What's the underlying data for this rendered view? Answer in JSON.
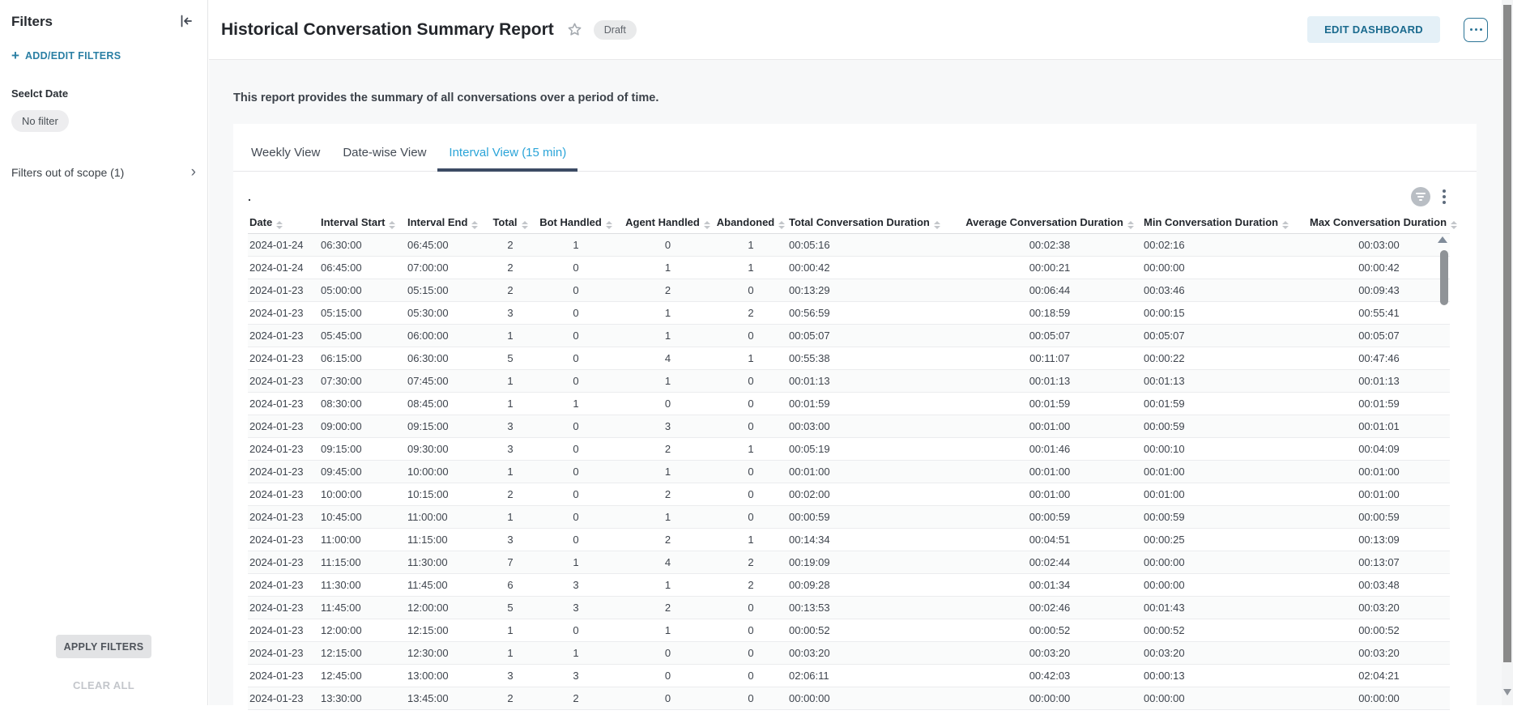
{
  "sidebar": {
    "title": "Filters",
    "add_edit_filters": "ADD/EDIT FILTERS",
    "select_date_label": "Seelct Date",
    "no_filter_chip": "No filter",
    "filters_out_of_scope": "Filters out of scope (1)",
    "apply_filters_button": "APPLY FILTERS",
    "clear_all_button": "CLEAR ALL"
  },
  "header": {
    "title": "Historical Conversation Summary Report",
    "status_badge": "Draft",
    "edit_dashboard_button": "EDIT DASHBOARD"
  },
  "report": {
    "description": "This report provides the summary of all conversations over a period of time.",
    "tabs": [
      "Weekly View",
      "Date-wise View",
      "Interval View (15 min)"
    ],
    "active_tab": "Interval View (15 min)",
    "widget_title": "."
  },
  "icons": {
    "collapse_sidebar": "collapse-left-icon",
    "add_filter": "plus-icon",
    "scope_expand": "chevron-right-icon",
    "favorite": "star-icon",
    "more_actions": "ellipsis-icon",
    "widget_filter": "filter-icon",
    "widget_menu": "kebab-menu-icon",
    "column_sort": "sort-arrows-icon"
  },
  "colors": {
    "link_teal": "#2a7fa4",
    "active_tab_blue": "#2aa4d8",
    "tab_underline": "#3c4b64",
    "edit_button_bg": "#e4f0f7",
    "edit_button_text": "#1a6a8e",
    "badge_bg": "#e9eaeb",
    "content_bg": "#f7f8f9"
  },
  "table": {
    "columns": [
      "Date",
      "Interval Start",
      "Interval End",
      "Total",
      "Bot Handled",
      "Agent Handled",
      "Abandoned",
      "Total Conversation Duration",
      "Average Conversation Duration",
      "Min Conversation Duration",
      "Max Conversation Duration"
    ],
    "rows": [
      [
        "2024-01-24",
        "06:30:00",
        "06:45:00",
        "2",
        "1",
        "0",
        "1",
        "00:05:16",
        "00:02:38",
        "00:02:16",
        "00:03:00"
      ],
      [
        "2024-01-24",
        "06:45:00",
        "07:00:00",
        "2",
        "0",
        "1",
        "1",
        "00:00:42",
        "00:00:21",
        "00:00:00",
        "00:00:42"
      ],
      [
        "2024-01-23",
        "05:00:00",
        "05:15:00",
        "2",
        "0",
        "2",
        "0",
        "00:13:29",
        "00:06:44",
        "00:03:46",
        "00:09:43"
      ],
      [
        "2024-01-23",
        "05:15:00",
        "05:30:00",
        "3",
        "0",
        "1",
        "2",
        "00:56:59",
        "00:18:59",
        "00:00:15",
        "00:55:41"
      ],
      [
        "2024-01-23",
        "05:45:00",
        "06:00:00",
        "1",
        "0",
        "1",
        "0",
        "00:05:07",
        "00:05:07",
        "00:05:07",
        "00:05:07"
      ],
      [
        "2024-01-23",
        "06:15:00",
        "06:30:00",
        "5",
        "0",
        "4",
        "1",
        "00:55:38",
        "00:11:07",
        "00:00:22",
        "00:47:46"
      ],
      [
        "2024-01-23",
        "07:30:00",
        "07:45:00",
        "1",
        "0",
        "1",
        "0",
        "00:01:13",
        "00:01:13",
        "00:01:13",
        "00:01:13"
      ],
      [
        "2024-01-23",
        "08:30:00",
        "08:45:00",
        "1",
        "1",
        "0",
        "0",
        "00:01:59",
        "00:01:59",
        "00:01:59",
        "00:01:59"
      ],
      [
        "2024-01-23",
        "09:00:00",
        "09:15:00",
        "3",
        "0",
        "3",
        "0",
        "00:03:00",
        "00:01:00",
        "00:00:59",
        "00:01:01"
      ],
      [
        "2024-01-23",
        "09:15:00",
        "09:30:00",
        "3",
        "0",
        "2",
        "1",
        "00:05:19",
        "00:01:46",
        "00:00:10",
        "00:04:09"
      ],
      [
        "2024-01-23",
        "09:45:00",
        "10:00:00",
        "1",
        "0",
        "1",
        "0",
        "00:01:00",
        "00:01:00",
        "00:01:00",
        "00:01:00"
      ],
      [
        "2024-01-23",
        "10:00:00",
        "10:15:00",
        "2",
        "0",
        "2",
        "0",
        "00:02:00",
        "00:01:00",
        "00:01:00",
        "00:01:00"
      ],
      [
        "2024-01-23",
        "10:45:00",
        "11:00:00",
        "1",
        "0",
        "1",
        "0",
        "00:00:59",
        "00:00:59",
        "00:00:59",
        "00:00:59"
      ],
      [
        "2024-01-23",
        "11:00:00",
        "11:15:00",
        "3",
        "0",
        "2",
        "1",
        "00:14:34",
        "00:04:51",
        "00:00:25",
        "00:13:09"
      ],
      [
        "2024-01-23",
        "11:15:00",
        "11:30:00",
        "7",
        "1",
        "4",
        "2",
        "00:19:09",
        "00:02:44",
        "00:00:00",
        "00:13:07"
      ],
      [
        "2024-01-23",
        "11:30:00",
        "11:45:00",
        "6",
        "3",
        "1",
        "2",
        "00:09:28",
        "00:01:34",
        "00:00:00",
        "00:03:48"
      ],
      [
        "2024-01-23",
        "11:45:00",
        "12:00:00",
        "5",
        "3",
        "2",
        "0",
        "00:13:53",
        "00:02:46",
        "00:01:43",
        "00:03:20"
      ],
      [
        "2024-01-23",
        "12:00:00",
        "12:15:00",
        "1",
        "0",
        "1",
        "0",
        "00:00:52",
        "00:00:52",
        "00:00:52",
        "00:00:52"
      ],
      [
        "2024-01-23",
        "12:15:00",
        "12:30:00",
        "1",
        "1",
        "0",
        "0",
        "00:03:20",
        "00:03:20",
        "00:03:20",
        "00:03:20"
      ],
      [
        "2024-01-23",
        "12:45:00",
        "13:00:00",
        "3",
        "3",
        "0",
        "0",
        "02:06:11",
        "00:42:03",
        "00:00:13",
        "02:04:21"
      ],
      [
        "2024-01-23",
        "13:30:00",
        "13:45:00",
        "2",
        "2",
        "0",
        "0",
        "00:00:00",
        "00:00:00",
        "00:00:00",
        "00:00:00"
      ]
    ]
  }
}
